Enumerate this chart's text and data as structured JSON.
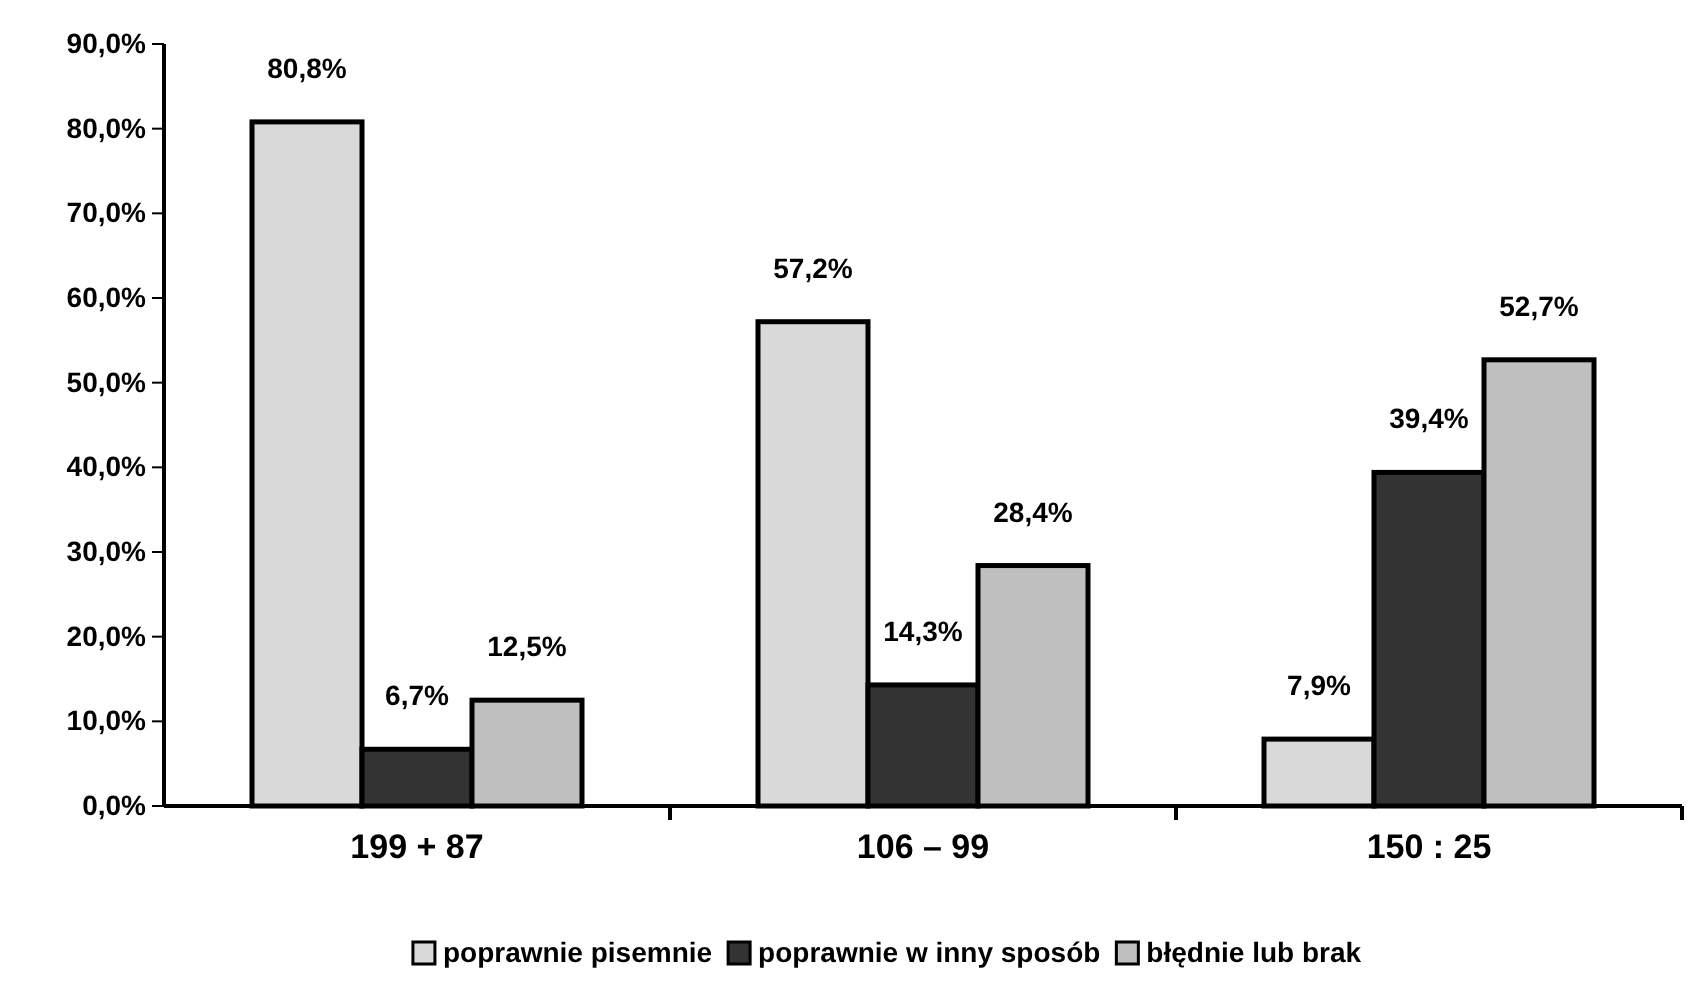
{
  "chart_data": {
    "type": "bar",
    "categories": [
      "199 + 87",
      "106 – 99",
      "150 : 25"
    ],
    "series": [
      {
        "name": "poprawnie pisemnie",
        "color": "#d9d9d9",
        "values": [
          80.8,
          57.2,
          7.9
        ],
        "value_labels": [
          "80,8%",
          "57,2%",
          "7,9%"
        ]
      },
      {
        "name": "poprawnie w inny sposób",
        "color": "#333333",
        "values": [
          6.7,
          14.3,
          39.4
        ],
        "value_labels": [
          "6,7%",
          "14,3%",
          "39,4%"
        ]
      },
      {
        "name": "błędnie lub brak",
        "color": "#bfbfbf",
        "values": [
          12.5,
          28.4,
          52.7
        ],
        "value_labels": [
          "12,5%",
          "28,4%",
          "52,7%"
        ]
      }
    ],
    "ylim": [
      0,
      90
    ],
    "yticks": [
      {
        "value": 0,
        "label": "0,0%"
      },
      {
        "value": 10,
        "label": "10,0%"
      },
      {
        "value": 20,
        "label": "20,0%"
      },
      {
        "value": 30,
        "label": "30,0%"
      },
      {
        "value": 40,
        "label": "40,0%"
      },
      {
        "value": 50,
        "label": "50,0%"
      },
      {
        "value": 60,
        "label": "60,0%"
      },
      {
        "value": 70,
        "label": "70,0%"
      },
      {
        "value": 80,
        "label": "80,0%"
      },
      {
        "value": 90,
        "label": "90,0%"
      }
    ],
    "grid": false,
    "legend": "bottom"
  }
}
